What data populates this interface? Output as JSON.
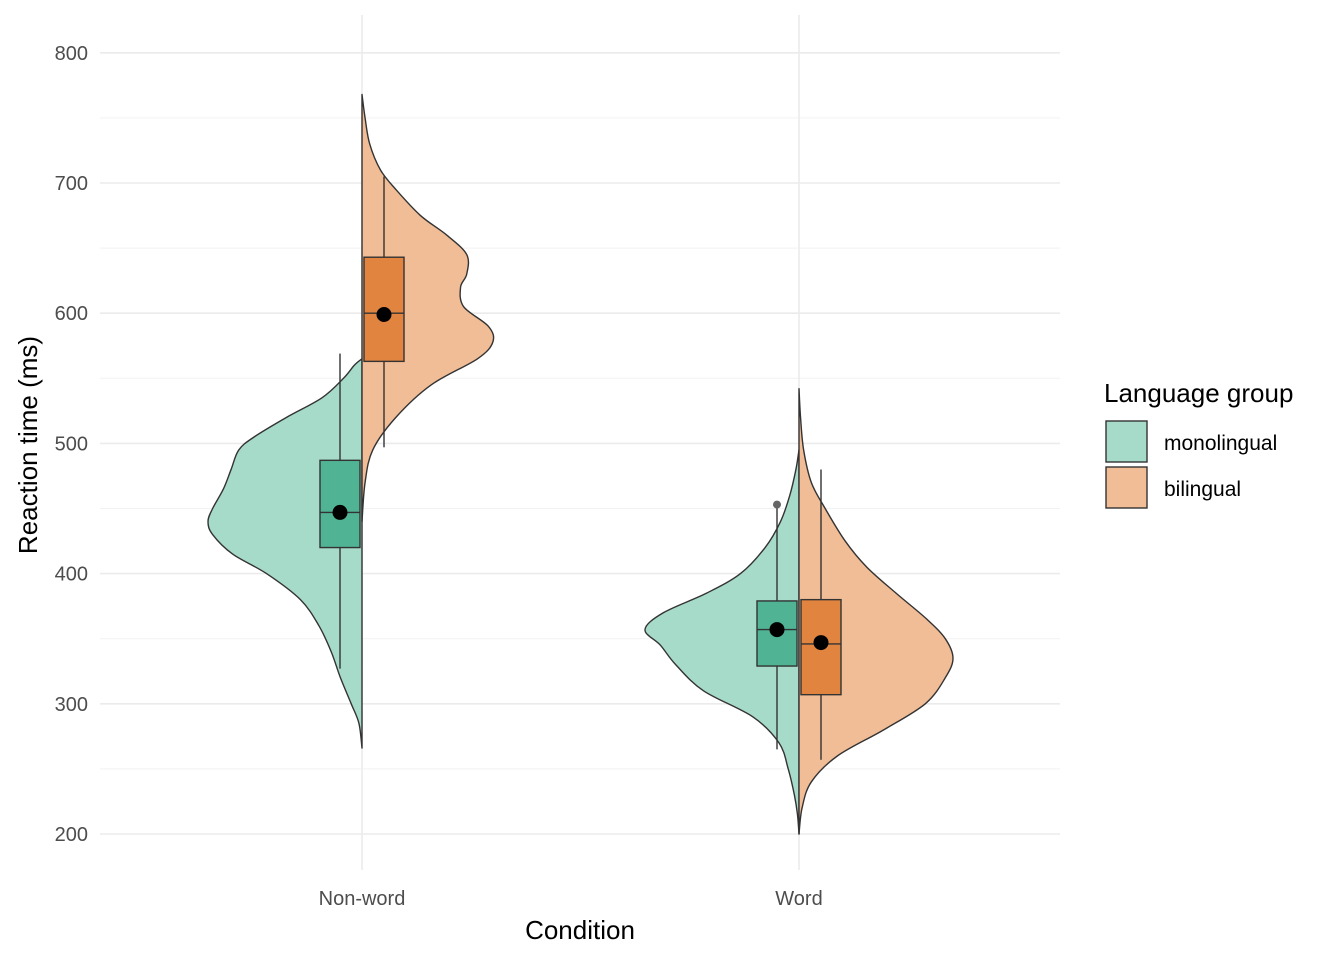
{
  "chart_data": {
    "type": "split-violin-boxplot",
    "xlabel": "Condition",
    "ylabel": "Reaction time (ms)",
    "ylim": [
      172,
      832
    ],
    "yticks": [
      200,
      300,
      400,
      500,
      600,
      700,
      800
    ],
    "categories": [
      "Non-word",
      "Word"
    ],
    "legend": {
      "title": "Language group",
      "position": "right",
      "entries": [
        {
          "name": "monolingual",
          "fill": "#a6dac9"
        },
        {
          "name": "bilingual",
          "fill": "#f1bd96"
        }
      ]
    },
    "series": [
      {
        "name": "monolingual",
        "violin_fill": "#a6dac9",
        "box_fill": "#4fb394",
        "groups": [
          {
            "category": "Non-word",
            "box": {
              "q1": 420,
              "median": 447,
              "q3": 487,
              "whisker_low": 327,
              "whisker_high": 569
            },
            "mean": 447,
            "outliers": [],
            "density": [
              [
                266,
                0
              ],
              [
                285,
                0.02
              ],
              [
                300,
                0.07
              ],
              [
                320,
                0.14
              ],
              [
                340,
                0.2
              ],
              [
                360,
                0.28
              ],
              [
                380,
                0.4
              ],
              [
                400,
                0.62
              ],
              [
                415,
                0.84
              ],
              [
                430,
                0.97
              ],
              [
                440,
                1.0
              ],
              [
                450,
                0.97
              ],
              [
                465,
                0.9
              ],
              [
                480,
                0.85
              ],
              [
                495,
                0.8
              ],
              [
                505,
                0.7
              ],
              [
                520,
                0.49
              ],
              [
                535,
                0.26
              ],
              [
                550,
                0.12
              ],
              [
                560,
                0.05
              ],
              [
                565,
                0
              ]
            ]
          },
          {
            "category": "Word",
            "box": {
              "q1": 329,
              "median": 357,
              "q3": 379,
              "whisker_low": 265,
              "whisker_high": 453
            },
            "mean": 357,
            "outliers": [
              453
            ],
            "density": [
              [
                200,
                0
              ],
              [
                215,
                0.01
              ],
              [
                230,
                0.03
              ],
              [
                250,
                0.07
              ],
              [
                270,
                0.13
              ],
              [
                290,
                0.3
              ],
              [
                310,
                0.62
              ],
              [
                330,
                0.8
              ],
              [
                345,
                0.9
              ],
              [
                357,
                1.0
              ],
              [
                370,
                0.88
              ],
              [
                385,
                0.6
              ],
              [
                400,
                0.38
              ],
              [
                420,
                0.22
              ],
              [
                440,
                0.12
              ],
              [
                460,
                0.06
              ],
              [
                480,
                0.02
              ],
              [
                495,
                0
              ]
            ]
          }
        ]
      },
      {
        "name": "bilingual",
        "violin_fill": "#f1bd96",
        "box_fill": "#e1843f",
        "groups": [
          {
            "category": "Non-word",
            "box": {
              "q1": 563,
              "median": 600,
              "q3": 643,
              "whisker_low": 497,
              "whisker_high": 705
            },
            "mean": 599,
            "outliers": [],
            "density": [
              [
                440,
                0
              ],
              [
                470,
                0.02
              ],
              [
                495,
                0.07
              ],
              [
                520,
                0.22
              ],
              [
                545,
                0.45
              ],
              [
                565,
                0.75
              ],
              [
                578,
                0.85
              ],
              [
                590,
                0.82
              ],
              [
                605,
                0.66
              ],
              [
                620,
                0.64
              ],
              [
                630,
                0.68
              ],
              [
                645,
                0.68
              ],
              [
                660,
                0.55
              ],
              [
                675,
                0.38
              ],
              [
                695,
                0.22
              ],
              [
                710,
                0.12
              ],
              [
                730,
                0.05
              ],
              [
                750,
                0.02
              ],
              [
                768,
                0
              ]
            ]
          },
          {
            "category": "Word",
            "box": {
              "q1": 307,
              "median": 346,
              "q3": 380,
              "whisker_low": 257,
              "whisker_high": 480
            },
            "mean": 347,
            "outliers": [],
            "density": [
              [
                200,
                0
              ],
              [
                220,
                0.02
              ],
              [
                240,
                0.08
              ],
              [
                260,
                0.25
              ],
              [
                280,
                0.55
              ],
              [
                300,
                0.82
              ],
              [
                320,
                0.95
              ],
              [
                335,
                1.0
              ],
              [
                350,
                0.95
              ],
              [
                365,
                0.83
              ],
              [
                385,
                0.63
              ],
              [
                405,
                0.44
              ],
              [
                425,
                0.3
              ],
              [
                450,
                0.17
              ],
              [
                470,
                0.08
              ],
              [
                495,
                0.03
              ],
              [
                520,
                0.01
              ],
              [
                542,
                0
              ]
            ]
          }
        ]
      }
    ]
  }
}
